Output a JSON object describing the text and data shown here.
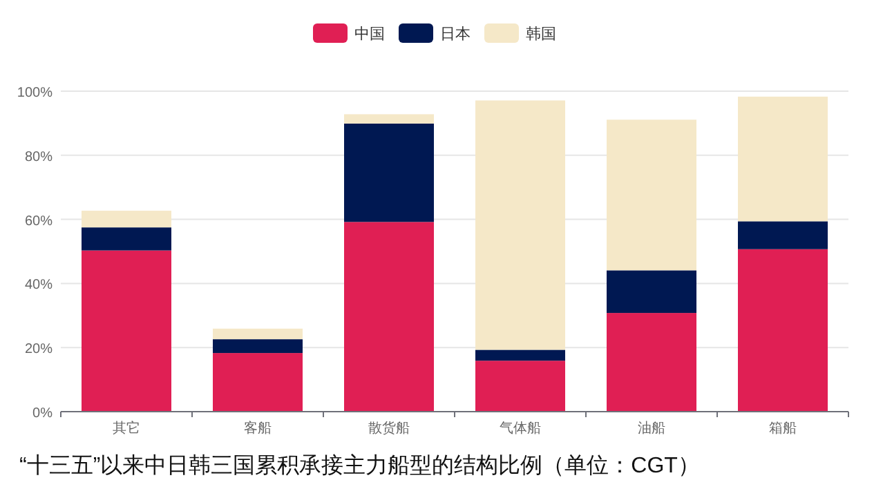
{
  "chart_data": {
    "type": "bar",
    "stacked": true,
    "title": "“十三五”以来中日韩三国累积承接主力船型的结构比例（单位：CGT）",
    "categories": [
      "其它",
      "客船",
      "散货船",
      "气体船",
      "油船",
      "箱船"
    ],
    "series": [
      {
        "name": "中国",
        "color": "#e01f54",
        "values": [
          50.3,
          18.3,
          59.2,
          15.9,
          30.8,
          50.7
        ]
      },
      {
        "name": "日本",
        "color": "#001852",
        "values": [
          7.2,
          4.3,
          30.7,
          3.4,
          13.3,
          8.7
        ]
      },
      {
        "name": "韩国",
        "color": "#f5e8c8",
        "values": [
          5.2,
          3.3,
          2.9,
          77.8,
          47.0,
          38.9
        ]
      }
    ],
    "ylim": [
      0,
      100
    ],
    "yticks": [
      {
        "value": 0,
        "label": "0%"
      },
      {
        "value": 20,
        "label": "20%"
      },
      {
        "value": 40,
        "label": "40%"
      },
      {
        "value": 60,
        "label": "60%"
      },
      {
        "value": 80,
        "label": "80%"
      },
      {
        "value": 100,
        "label": "100%"
      }
    ],
    "grid": "y",
    "legend": "top"
  }
}
